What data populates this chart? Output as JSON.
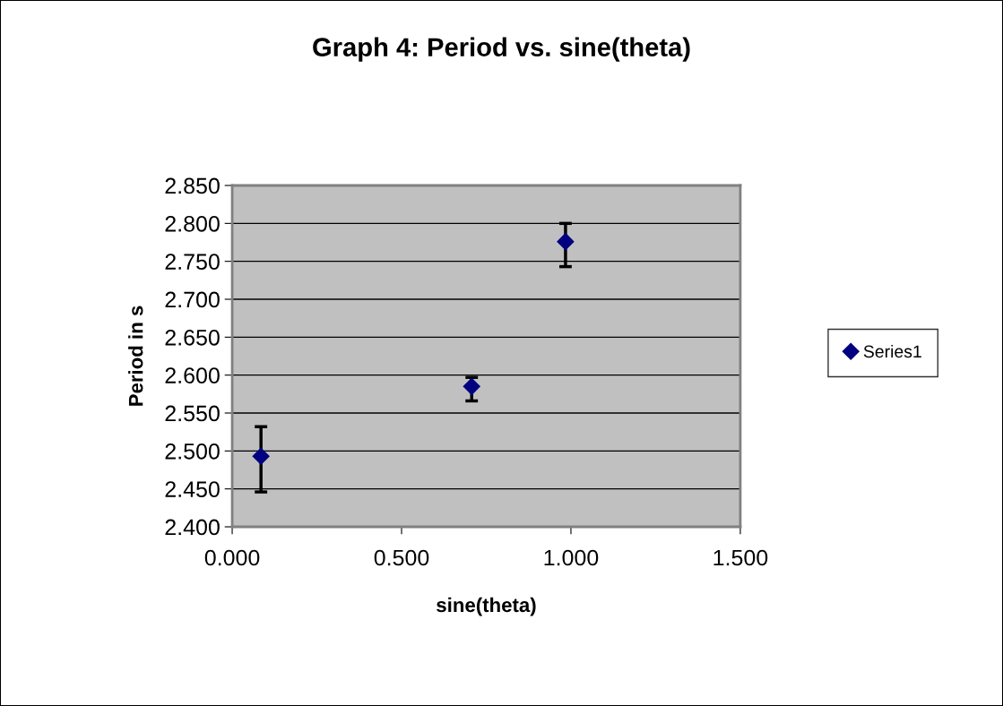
{
  "chart_data": {
    "type": "scatter",
    "title": "Graph 4: Period vs. sine(theta)",
    "xlabel": "sine(theta)",
    "ylabel": "Period in s",
    "x": [
      0.085,
      0.707,
      0.984
    ],
    "series": [
      {
        "name": "Series1",
        "color": "#000080",
        "values": [
          2.493,
          2.585,
          2.776
        ],
        "errors": [
          [
            2.446,
            2.532
          ],
          [
            2.566,
            2.597
          ],
          [
            2.743,
            2.8
          ]
        ]
      }
    ],
    "xlim": [
      0,
      1.5
    ],
    "xticks": [
      {
        "value": 0,
        "label": "0.000"
      },
      {
        "value": 0.5,
        "label": "0.500"
      },
      {
        "value": 1,
        "label": "1.000"
      },
      {
        "value": 1.5,
        "label": "1.500"
      }
    ],
    "ylim": [
      2.4,
      2.85
    ],
    "yticks": [
      {
        "value": 2.4,
        "label": "2.400"
      },
      {
        "value": 2.45,
        "label": "2.450"
      },
      {
        "value": 2.5,
        "label": "2.500"
      },
      {
        "value": 2.55,
        "label": "2.550"
      },
      {
        "value": 2.6,
        "label": "2.600"
      },
      {
        "value": 2.65,
        "label": "2.650"
      },
      {
        "value": 2.7,
        "label": "2.700"
      },
      {
        "value": 2.75,
        "label": "2.750"
      },
      {
        "value": 2.8,
        "label": "2.800"
      },
      {
        "value": 2.85,
        "label": "2.850"
      }
    ],
    "grid": "y",
    "legend": "right",
    "marker": "diamond"
  }
}
